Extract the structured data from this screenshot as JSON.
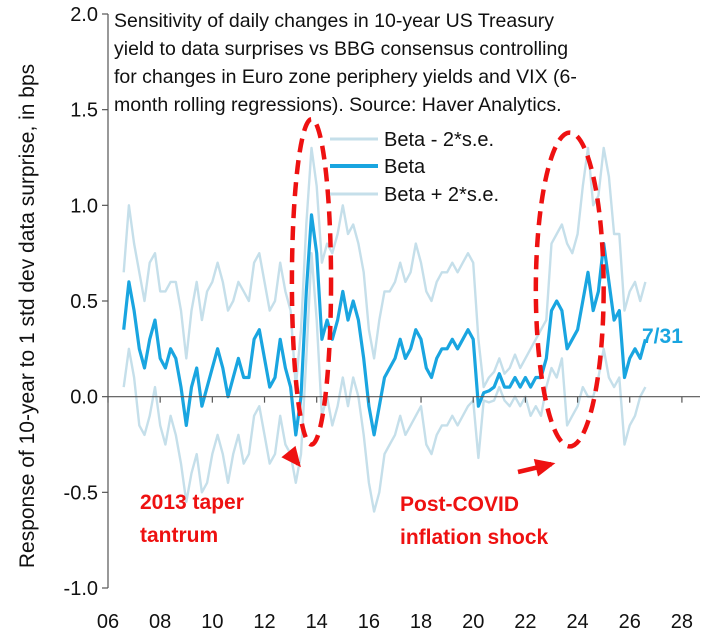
{
  "chart_data": {
    "type": "line",
    "title_lines": [
      "Sensitivity of daily changes in 10-year US Treasury",
      "yield to data surprises vs BBG consensus controlling",
      "for changes in Euro zone periphery yields and VIX (6-",
      "month rolling regressions). Source: Haver Analytics."
    ],
    "ylabel": "Response of 10-year to 1 std dev data surprise, in bps",
    "xlabel": "",
    "x_ticks": [
      "06",
      "08",
      "10",
      "12",
      "14",
      "16",
      "18",
      "20",
      "22",
      "24",
      "26",
      "28"
    ],
    "x_tick_values": [
      6,
      8,
      10,
      12,
      14,
      16,
      18,
      20,
      22,
      24,
      26,
      28
    ],
    "y_ticks": [
      "2.0",
      "1.5",
      "1.0",
      "0.5",
      "0.0",
      "-0.5",
      "-1.0"
    ],
    "y_tick_values": [
      2.0,
      1.5,
      1.0,
      0.5,
      0.0,
      -0.5,
      -1.0
    ],
    "xlim": [
      6,
      29
    ],
    "ylim": [
      -1.0,
      2.0
    ],
    "x": [
      6.6,
      6.8,
      7.0,
      7.2,
      7.4,
      7.6,
      7.8,
      8.0,
      8.2,
      8.4,
      8.6,
      8.8,
      9.0,
      9.2,
      9.4,
      9.6,
      9.8,
      10.0,
      10.2,
      10.4,
      10.6,
      10.8,
      11.0,
      11.2,
      11.4,
      11.6,
      11.8,
      12.0,
      12.2,
      12.4,
      12.6,
      12.8,
      13.0,
      13.2,
      13.4,
      13.6,
      13.8,
      14.0,
      14.2,
      14.4,
      14.6,
      14.8,
      15.0,
      15.2,
      15.4,
      15.6,
      15.8,
      16.0,
      16.2,
      16.4,
      16.6,
      16.8,
      17.0,
      17.2,
      17.4,
      17.6,
      17.8,
      18.0,
      18.2,
      18.4,
      18.6,
      18.8,
      19.0,
      19.2,
      19.4,
      19.6,
      19.8,
      20.0,
      20.2,
      20.4,
      20.6,
      20.8,
      21.0,
      21.2,
      21.4,
      21.6,
      21.8,
      22.0,
      22.2,
      22.4,
      22.6,
      22.8,
      23.0,
      23.2,
      23.4,
      23.6,
      23.8,
      24.0,
      24.2,
      24.4,
      24.6,
      24.8,
      25.0,
      25.2,
      25.4,
      25.6,
      25.8,
      26.0,
      26.2,
      26.4,
      26.6
    ],
    "series": [
      {
        "name": "Beta - 2*s.e.",
        "color": "#c5dfea",
        "values": [
          0.05,
          0.25,
          0.1,
          -0.15,
          -0.2,
          -0.1,
          0.05,
          -0.15,
          -0.25,
          -0.1,
          -0.2,
          -0.35,
          -0.55,
          -0.4,
          -0.3,
          -0.5,
          -0.45,
          -0.3,
          -0.2,
          -0.3,
          -0.45,
          -0.3,
          -0.2,
          -0.35,
          -0.3,
          -0.1,
          -0.05,
          -0.2,
          -0.35,
          -0.3,
          -0.1,
          -0.25,
          -0.3,
          -0.45,
          -0.3,
          0.2,
          0.75,
          0.4,
          -0.1,
          0.0,
          -0.15,
          -0.05,
          0.1,
          -0.05,
          0.1,
          0.0,
          -0.2,
          -0.45,
          -0.6,
          -0.5,
          -0.3,
          -0.25,
          -0.2,
          -0.1,
          -0.2,
          -0.15,
          -0.1,
          -0.05,
          -0.25,
          -0.3,
          -0.2,
          -0.15,
          -0.15,
          -0.1,
          -0.15,
          -0.1,
          -0.05,
          -0.02,
          -0.32,
          -0.02,
          -0.03,
          -0.02,
          0.05,
          -0.02,
          -0.05,
          0.0,
          -0.05,
          0.0,
          -0.1,
          -0.05,
          -0.1,
          0.05,
          0.15,
          0.1,
          0.2,
          -0.15,
          -0.1,
          -0.05,
          0.05,
          0.0,
          0.0,
          0.1,
          0.25,
          0.1,
          0.05,
          0.1,
          -0.25,
          -0.15,
          -0.1,
          0.0,
          0.05
        ]
      },
      {
        "name": "Beta",
        "color": "#19a5e0",
        "values": [
          0.35,
          0.6,
          0.45,
          0.25,
          0.15,
          0.3,
          0.4,
          0.2,
          0.15,
          0.25,
          0.2,
          0.05,
          -0.15,
          0.05,
          0.15,
          -0.05,
          0.05,
          0.15,
          0.25,
          0.15,
          0.0,
          0.1,
          0.2,
          0.1,
          0.1,
          0.3,
          0.35,
          0.2,
          0.05,
          0.1,
          0.3,
          0.15,
          0.05,
          -0.2,
          0.0,
          0.55,
          0.95,
          0.75,
          0.3,
          0.4,
          0.3,
          0.4,
          0.55,
          0.4,
          0.5,
          0.4,
          0.2,
          -0.05,
          -0.2,
          -0.05,
          0.1,
          0.15,
          0.2,
          0.3,
          0.2,
          0.25,
          0.35,
          0.3,
          0.15,
          0.1,
          0.2,
          0.25,
          0.25,
          0.3,
          0.25,
          0.3,
          0.35,
          0.3,
          -0.05,
          0.02,
          0.03,
          0.05,
          0.12,
          0.05,
          0.05,
          0.1,
          0.05,
          0.1,
          0.05,
          0.1,
          0.1,
          0.2,
          0.45,
          0.5,
          0.45,
          0.25,
          0.3,
          0.35,
          0.5,
          0.65,
          0.45,
          0.55,
          0.8,
          0.6,
          0.4,
          0.45,
          0.1,
          0.2,
          0.25,
          0.2,
          0.3
        ]
      },
      {
        "name": "Beta + 2*s.e.",
        "color": "#c5dfea",
        "values": [
          0.65,
          1.0,
          0.8,
          0.65,
          0.5,
          0.7,
          0.75,
          0.55,
          0.55,
          0.6,
          0.6,
          0.45,
          0.2,
          0.45,
          0.6,
          0.4,
          0.55,
          0.6,
          0.7,
          0.6,
          0.45,
          0.5,
          0.6,
          0.55,
          0.5,
          0.7,
          0.75,
          0.6,
          0.45,
          0.5,
          0.7,
          0.55,
          0.45,
          0.05,
          0.35,
          0.9,
          1.3,
          1.1,
          0.7,
          0.8,
          0.75,
          0.85,
          1.0,
          0.85,
          0.9,
          0.8,
          0.65,
          0.35,
          0.2,
          0.4,
          0.55,
          0.55,
          0.6,
          0.7,
          0.6,
          0.65,
          0.8,
          0.7,
          0.55,
          0.5,
          0.6,
          0.65,
          0.65,
          0.7,
          0.65,
          0.7,
          0.75,
          0.7,
          0.3,
          0.05,
          0.1,
          0.13,
          0.2,
          0.12,
          0.15,
          0.22,
          0.15,
          0.2,
          0.25,
          0.3,
          0.35,
          0.4,
          0.8,
          0.85,
          0.9,
          0.8,
          0.75,
          0.85,
          1.1,
          1.3,
          1.0,
          1.05,
          1.3,
          1.15,
          0.85,
          0.85,
          0.45,
          0.55,
          0.6,
          0.5,
          0.6
        ]
      }
    ],
    "legend": [
      "Beta - 2*s.e.",
      "Beta",
      "Beta + 2*s.e."
    ],
    "legend_placement": "top-center",
    "grid": false,
    "annotations": [
      {
        "text_lines": [
          "2013 taper",
          "tantrum"
        ],
        "color": "#ee1111",
        "ellipse_center": [
          13.8,
          0.6
        ],
        "ellipse_radii": [
          0.75,
          0.85
        ],
        "arrow_to": [
          13.3,
          -0.3
        ]
      },
      {
        "text_lines": [
          "Post-COVID",
          "inflation shock"
        ],
        "color": "#ee1111",
        "ellipse_center": [
          23.7,
          0.56
        ],
        "ellipse_radii": [
          1.3,
          0.82
        ],
        "arrow_to": [
          23.0,
          -0.3
        ]
      }
    ],
    "last_value_label": {
      "text": "7/31",
      "color": "#19a5e0"
    }
  }
}
